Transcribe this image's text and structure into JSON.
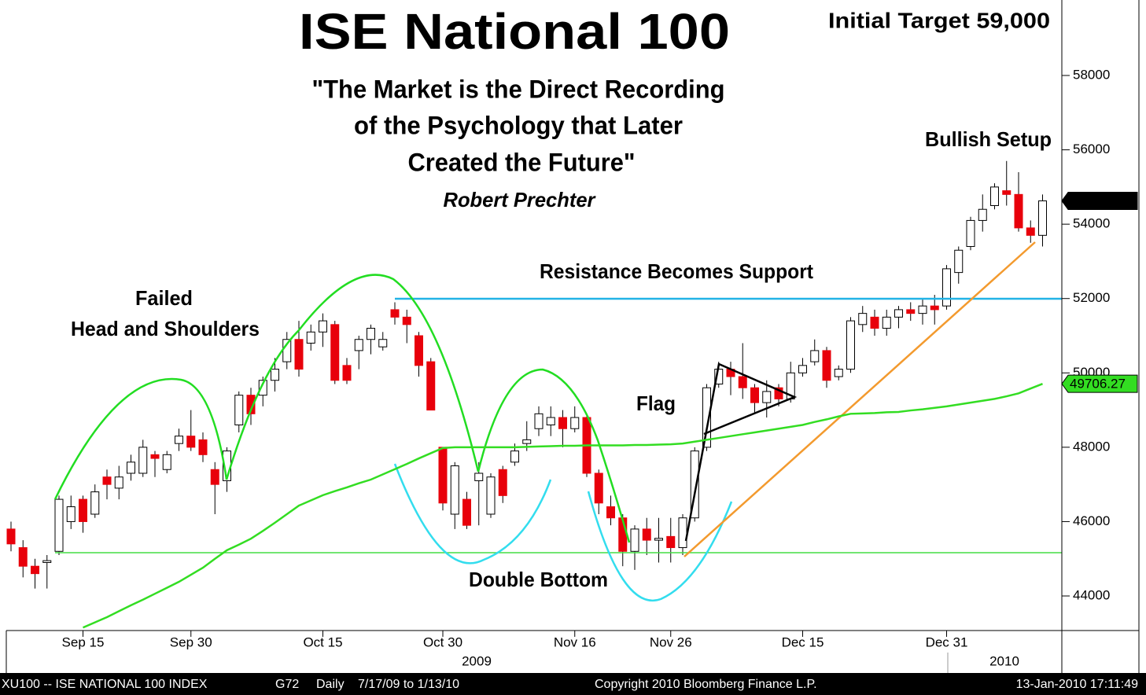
{
  "chart_data": {
    "type": "candlestick",
    "title": "ISE National 100",
    "subtitle": [
      "\"The Market is the Direct Recording",
      "of the Psychology that Later",
      "Created the Future\""
    ],
    "author": "Robert Prechter",
    "annotations": [
      "Initial Target 59,000",
      "Bullish Setup",
      "Resistance Becomes Support",
      "Failed",
      "Head and Shoulders",
      "Flag",
      "Double Bottom"
    ],
    "years": [
      "2009",
      "2010"
    ],
    "footer": [
      "XU100 -- ISE NATIONAL 100 INDEX",
      "G72",
      "Daily",
      "7/17/09 to 1/13/10",
      "Copyright 2010 Bloomberg Finance L.P.",
      "13-Jan-2010 17:11:49"
    ],
    "categories": [
      null,
      null,
      null,
      null,
      null,
      null,
      "Sep 15",
      null,
      null,
      null,
      null,
      null,
      null,
      null,
      null,
      "Sep 30",
      null,
      null,
      null,
      null,
      null,
      null,
      null,
      null,
      null,
      null,
      "Oct 15",
      null,
      null,
      null,
      null,
      null,
      null,
      null,
      null,
      null,
      "Oct 30",
      null,
      null,
      null,
      null,
      null,
      null,
      null,
      null,
      null,
      null,
      "Nov 16",
      null,
      null,
      null,
      null,
      null,
      null,
      null,
      "Nov 26",
      null,
      null,
      null,
      null,
      null,
      null,
      null,
      null,
      null,
      null,
      "Dec 15",
      null,
      null,
      null,
      null,
      null,
      null,
      null,
      null,
      null,
      null,
      null,
      "Dec 31",
      null,
      null,
      null,
      null,
      null,
      null,
      null,
      null
    ],
    "open": [
      45800,
      45300,
      44800,
      44900,
      45200,
      46000,
      46600,
      46200,
      47200,
      46900,
      47300,
      47300,
      47800,
      47400,
      48100,
      48300,
      48200,
      47400,
      47100,
      48600,
      49400,
      49400,
      49800,
      50300,
      50900,
      50800,
      51100,
      51300,
      50200,
      50600,
      50900,
      50700,
      51700,
      51500,
      51000,
      50300,
      48000,
      46200,
      46600,
      47100,
      46200,
      47400,
      47600,
      48100,
      48500,
      48600,
      48800,
      48500,
      48800,
      47300,
      46400,
      46100,
      45200,
      45800,
      45500,
      45600,
      45300,
      46100,
      48000,
      49700,
      50100,
      49900,
      49600,
      49200,
      49600,
      49300,
      50000,
      50300,
      50600,
      49900,
      50100,
      51300,
      51500,
      51200,
      51500,
      51700,
      51600,
      51800,
      51800,
      52700,
      53400,
      54100,
      54500,
      54900,
      54800,
      53900,
      53700
    ],
    "high": [
      46000,
      45500,
      45000,
      45100,
      46700,
      46700,
      46700,
      47000,
      47400,
      47500,
      47800,
      48200,
      47900,
      47900,
      48500,
      49000,
      48400,
      47600,
      48000,
      49500,
      49600,
      49900,
      50400,
      51100,
      51400,
      51300,
      51600,
      51400,
      50400,
      51000,
      51300,
      51100,
      51900,
      51700,
      51100,
      50400,
      48000,
      47600,
      46800,
      47600,
      47300,
      47500,
      48100,
      48700,
      49100,
      49100,
      49000,
      49100,
      48900,
      47400,
      46700,
      46200,
      45900,
      46100,
      46100,
      46100,
      46200,
      48000,
      49700,
      50300,
      50300,
      50800,
      49700,
      49800,
      49700,
      50300,
      50400,
      50900,
      50700,
      50200,
      51500,
      51800,
      51700,
      51700,
      51800,
      51900,
      52000,
      52100,
      52900,
      53400,
      54200,
      54800,
      55100,
      55700,
      55400,
      54100,
      54800
    ],
    "low": [
      45200,
      44500,
      44200,
      44200,
      45100,
      45800,
      45700,
      46100,
      46600,
      46600,
      47100,
      47200,
      47200,
      47300,
      47900,
      47900,
      47600,
      46200,
      46800,
      48400,
      48600,
      49100,
      49500,
      50100,
      49900,
      50600,
      50700,
      49700,
      49700,
      50100,
      50500,
      50600,
      51300,
      50800,
      49900,
      49000,
      46300,
      45800,
      45800,
      45900,
      46100,
      46500,
      47500,
      47900,
      48300,
      48300,
      48000,
      48400,
      47200,
      46200,
      45900,
      44800,
      44700,
      45100,
      44900,
      44900,
      45100,
      46000,
      47900,
      49600,
      49400,
      49300,
      48900,
      48800,
      49100,
      49200,
      49900,
      50200,
      49600,
      49800,
      50000,
      51100,
      51000,
      51000,
      51200,
      51400,
      51300,
      51300,
      51700,
      52400,
      53300,
      53800,
      54400,
      54500,
      53800,
      53500,
      53400
    ],
    "close": [
      45400,
      44800,
      44600,
      44950,
      46600,
      46400,
      46000,
      46800,
      47000,
      47200,
      47600,
      48000,
      47700,
      47800,
      48300,
      48000,
      47800,
      47000,
      47900,
      49400,
      48900,
      49800,
      50100,
      50900,
      50100,
      51100,
      51400,
      49800,
      49800,
      50900,
      51200,
      50900,
      51500,
      51300,
      50200,
      49000,
      46500,
      47500,
      45900,
      47300,
      47200,
      46700,
      47900,
      48200,
      48900,
      48800,
      48500,
      48800,
      47300,
      46500,
      46100,
      45200,
      45800,
      45500,
      45550,
      45300,
      46100,
      47900,
      49600,
      50100,
      49900,
      49600,
      49200,
      49500,
      49300,
      50000,
      50200,
      50600,
      49800,
      50100,
      51400,
      51600,
      51200,
      51500,
      51700,
      51600,
      51800,
      51700,
      52800,
      53300,
      54100,
      54400,
      55000,
      54800,
      53900,
      53700,
      54627.19
    ],
    "up_color": "#ffffff",
    "down_color": "#e8000b",
    "moving_average": {
      "color": "#33dd22",
      "values": [
        null,
        null,
        null,
        null,
        null,
        null,
        43150,
        43290,
        43430,
        43590,
        43750,
        43900,
        44060,
        44220,
        44380,
        44570,
        44760,
        45000,
        45230,
        45380,
        45540,
        45750,
        45970,
        46200,
        46430,
        46570,
        46710,
        46820,
        46920,
        47030,
        47130,
        47270,
        47410,
        47550,
        47700,
        47840,
        47980,
        48000,
        48000,
        48000,
        48000,
        48000,
        48000,
        48010,
        48020,
        48030,
        48040,
        48040,
        48050,
        48050,
        48050,
        48050,
        48060,
        48060,
        48070,
        48080,
        48100,
        48150,
        48200,
        48250,
        48300,
        48350,
        48400,
        48450,
        48500,
        48550,
        48600,
        48680,
        48750,
        48830,
        48900,
        48910,
        48920,
        48940,
        48950,
        48990,
        49020,
        49060,
        49100,
        49150,
        49200,
        49250,
        49300,
        49370,
        49450,
        49580,
        49706.27
      ]
    },
    "ylim": [
      43070,
      60030
    ],
    "yticks": [
      44000,
      46000,
      48000,
      50000,
      52000,
      54000,
      56000,
      58000
    ]
  }
}
